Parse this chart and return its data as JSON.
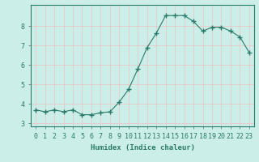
{
  "x": [
    0,
    1,
    2,
    3,
    4,
    5,
    6,
    7,
    8,
    9,
    10,
    11,
    12,
    13,
    14,
    15,
    16,
    17,
    18,
    19,
    20,
    21,
    22,
    23
  ],
  "y": [
    3.7,
    3.6,
    3.7,
    3.6,
    3.7,
    3.45,
    3.45,
    3.55,
    3.6,
    4.1,
    4.75,
    5.8,
    6.9,
    7.65,
    8.55,
    8.55,
    8.55,
    8.25,
    7.75,
    7.95,
    7.95,
    7.75,
    7.45,
    6.65
  ],
  "line_color": "#2a7a6a",
  "marker": "+",
  "marker_size": 4.0,
  "bg_color": "#cceee8",
  "grid_color_major": "#e8c8c8",
  "grid_color_minor": "#e0e0e0",
  "axis_color": "#2a7a6a",
  "xlabel": "Humidex (Indice chaleur)",
  "xlim": [
    -0.5,
    23.5
  ],
  "ylim": [
    2.85,
    9.1
  ],
  "yticks": [
    3,
    4,
    5,
    6,
    7,
    8
  ],
  "xticks": [
    0,
    1,
    2,
    3,
    4,
    5,
    6,
    7,
    8,
    9,
    10,
    11,
    12,
    13,
    14,
    15,
    16,
    17,
    18,
    19,
    20,
    21,
    22,
    23
  ],
  "xlabel_fontsize": 6.5,
  "tick_fontsize": 6.0
}
